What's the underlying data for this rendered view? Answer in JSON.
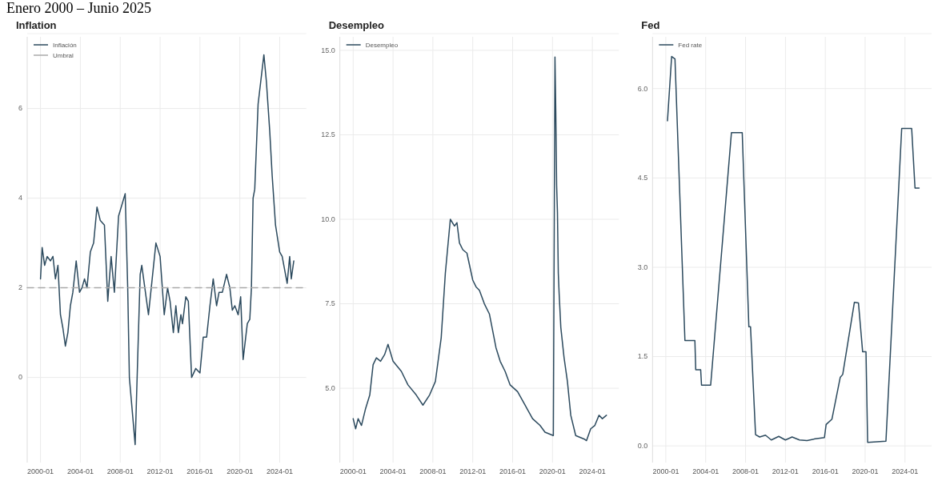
{
  "chart_data": [
    {
      "type": "line",
      "title": "Inflation",
      "subtitle": "Enero 2000 – Junio 2025",
      "xlim": [
        "1998-09",
        "2026-09"
      ],
      "xticks": [
        "2000-01",
        "2004-01",
        "2008-01",
        "2012-01",
        "2016-01",
        "2020-01",
        "2024-01"
      ],
      "ylim": [
        -1.9,
        7.6
      ],
      "yticks": [
        0,
        2,
        4,
        6
      ],
      "grid": true,
      "legend": "top left",
      "series": [
        {
          "name": "Inflación",
          "color": "#2c4a5e",
          "x": [
            "2000-01",
            "2000-03",
            "2000-06",
            "2000-09",
            "2001-01",
            "2001-04",
            "2001-07",
            "2001-10",
            "2002-01",
            "2002-04",
            "2002-07",
            "2002-10",
            "2003-01",
            "2003-04",
            "2003-08",
            "2003-12",
            "2004-03",
            "2004-06",
            "2004-09",
            "2005-01",
            "2005-05",
            "2005-09",
            "2006-01",
            "2006-06",
            "2006-10",
            "2007-02",
            "2007-06",
            "2007-11",
            "2008-07",
            "2008-10",
            "2008-12",
            "2009-07",
            "2010-01",
            "2010-03",
            "2010-11",
            "2011-08",
            "2012-01",
            "2012-06",
            "2012-10",
            "2013-01",
            "2013-05",
            "2013-08",
            "2013-11",
            "2014-02",
            "2014-04",
            "2014-08",
            "2014-11",
            "2015-03",
            "2015-08",
            "2016-01",
            "2016-05",
            "2016-09",
            "2017-01",
            "2017-05",
            "2017-09",
            "2017-12",
            "2018-04",
            "2018-09",
            "2019-01",
            "2019-04",
            "2019-07",
            "2019-11",
            "2020-02",
            "2020-05",
            "2020-10",
            "2021-01",
            "2021-03",
            "2021-05",
            "2021-07",
            "2021-11",
            "2022-06",
            "2022-09",
            "2023-01",
            "2023-04",
            "2023-08",
            "2024-01",
            "2024-04",
            "2024-07",
            "2024-10",
            "2025-01",
            "2025-03",
            "2025-06"
          ],
          "values": [
            2.2,
            2.9,
            2.5,
            2.7,
            2.6,
            2.7,
            2.2,
            2.5,
            1.4,
            1.1,
            0.7,
            1.0,
            1.6,
            1.9,
            2.6,
            1.9,
            2.0,
            2.2,
            2.0,
            2.8,
            3.0,
            3.8,
            3.5,
            3.4,
            1.7,
            2.7,
            1.9,
            3.6,
            4.1,
            2.0,
            0.0,
            -1.5,
            2.3,
            2.5,
            1.4,
            3.0,
            2.7,
            1.4,
            2.0,
            1.7,
            1.0,
            1.6,
            1.0,
            1.4,
            1.2,
            1.8,
            1.7,
            0.0,
            0.2,
            0.1,
            0.9,
            0.9,
            1.6,
            2.2,
            1.6,
            1.9,
            1.9,
            2.3,
            2.0,
            1.5,
            1.6,
            1.4,
            1.8,
            0.4,
            1.2,
            1.3,
            2.0,
            4.0,
            4.2,
            6.1,
            7.2,
            6.6,
            5.5,
            4.5,
            3.4,
            2.8,
            2.7,
            2.4,
            2.1,
            2.7,
            2.2,
            2.6
          ]
        },
        {
          "name": "Umbral",
          "color": "#aaaaaa",
          "line_style": "dashed",
          "x": [
            "1998-09",
            "2026-09"
          ],
          "values": [
            2,
            2
          ]
        }
      ]
    },
    {
      "type": "line",
      "title": "Desempleo",
      "xlim": [
        "1998-09",
        "2026-09"
      ],
      "xticks": [
        "2000-01",
        "2004-01",
        "2008-01",
        "2012-01",
        "2016-01",
        "2020-01",
        "2024-01"
      ],
      "ylim": [
        2.8,
        15.4
      ],
      "yticks": [
        {
          "value": 5,
          "label": "5.0"
        },
        {
          "value": 7.5,
          "label": "7.5"
        },
        {
          "value": 10,
          "label": "10.0"
        },
        {
          "value": 12.5,
          "label": "12.5"
        },
        {
          "value": 15,
          "label": "15.0"
        }
      ],
      "grid": true,
      "legend": "top left",
      "series": [
        {
          "name": "Desempleo",
          "color": "#2c4a5e",
          "x": [
            "2000-01",
            "2000-04",
            "2000-07",
            "2000-11",
            "2001-04",
            "2001-09",
            "2002-01",
            "2002-05",
            "2002-10",
            "2003-03",
            "2003-07",
            "2004-01",
            "2004-11",
            "2005-07",
            "2006-05",
            "2007-01",
            "2007-09",
            "2008-04",
            "2008-11",
            "2009-04",
            "2009-10",
            "2010-03",
            "2010-06",
            "2010-09",
            "2011-01",
            "2011-06",
            "2012-01",
            "2012-05",
            "2012-09",
            "2013-03",
            "2013-09",
            "2014-01",
            "2014-05",
            "2014-10",
            "2015-04",
            "2015-10",
            "2016-07",
            "2017-04",
            "2018-01",
            "2018-10",
            "2019-04",
            "2020-02",
            "2020-04",
            "2020-05",
            "2020-06",
            "2020-07",
            "2020-08",
            "2020-09",
            "2020-11",
            "2021-03",
            "2021-07",
            "2021-11",
            "2022-05",
            "2023-03",
            "2023-06",
            "2023-11",
            "2024-04",
            "2024-09",
            "2025-01",
            "2025-06"
          ],
          "values": [
            4.1,
            3.8,
            4.1,
            3.9,
            4.4,
            4.8,
            5.7,
            5.9,
            5.8,
            6.0,
            6.3,
            5.8,
            5.5,
            5.1,
            4.8,
            4.5,
            4.8,
            5.2,
            6.5,
            8.4,
            10.0,
            9.8,
            9.9,
            9.3,
            9.1,
            9.0,
            8.2,
            8.0,
            7.9,
            7.5,
            7.2,
            6.7,
            6.2,
            5.8,
            5.5,
            5.1,
            4.9,
            4.5,
            4.1,
            3.9,
            3.7,
            3.6,
            14.8,
            13.2,
            11.0,
            10.2,
            8.4,
            7.8,
            6.8,
            5.9,
            5.2,
            4.2,
            3.6,
            3.5,
            3.45,
            3.8,
            3.9,
            4.2,
            4.1,
            4.2
          ]
        }
      ]
    },
    {
      "type": "line",
      "title": "Fed",
      "xlim": [
        "1998-09",
        "2026-09"
      ],
      "xticks": [
        "2000-01",
        "2004-01",
        "2008-01",
        "2012-01",
        "2016-01",
        "2020-01",
        "2024-01"
      ],
      "ylim": [
        -0.28,
        6.87
      ],
      "yticks": [
        {
          "value": 0,
          "label": "0.0"
        },
        {
          "value": 1.5,
          "label": "1.5"
        },
        {
          "value": 3,
          "label": "3.0"
        },
        {
          "value": 4.5,
          "label": "4.5"
        },
        {
          "value": 6,
          "label": "6.0"
        }
      ],
      "grid": true,
      "legend": "top left",
      "series": [
        {
          "name": "Fed rate",
          "color": "#2c4a5e",
          "x": [
            "2000-03",
            "2000-08",
            "2000-12",
            "2001-12",
            "2002-12",
            "2003-01",
            "2003-07",
            "2003-08",
            "2004-07",
            "2006-08",
            "2007-09",
            "2008-05",
            "2008-07",
            "2009-01",
            "2009-06",
            "2010-01",
            "2010-08",
            "2011-05",
            "2012-01",
            "2012-09",
            "2013-06",
            "2014-03",
            "2015-01",
            "2015-12",
            "2016-02",
            "2016-09",
            "2017-07",
            "2017-10",
            "2018-12",
            "2019-05",
            "2019-10",
            "2020-02",
            "2020-04",
            "2022-02",
            "2023-09",
            "2024-09",
            "2025-01",
            "2025-06"
          ],
          "values": [
            5.46,
            6.54,
            6.5,
            1.77,
            1.77,
            1.28,
            1.28,
            1.02,
            1.02,
            5.26,
            5.26,
            2.0,
            2.0,
            0.19,
            0.15,
            0.18,
            0.1,
            0.16,
            0.1,
            0.15,
            0.1,
            0.09,
            0.12,
            0.14,
            0.36,
            0.45,
            1.15,
            1.2,
            2.41,
            2.4,
            1.58,
            1.58,
            0.06,
            0.08,
            5.33,
            5.33,
            4.33,
            4.33
          ]
        }
      ]
    }
  ]
}
